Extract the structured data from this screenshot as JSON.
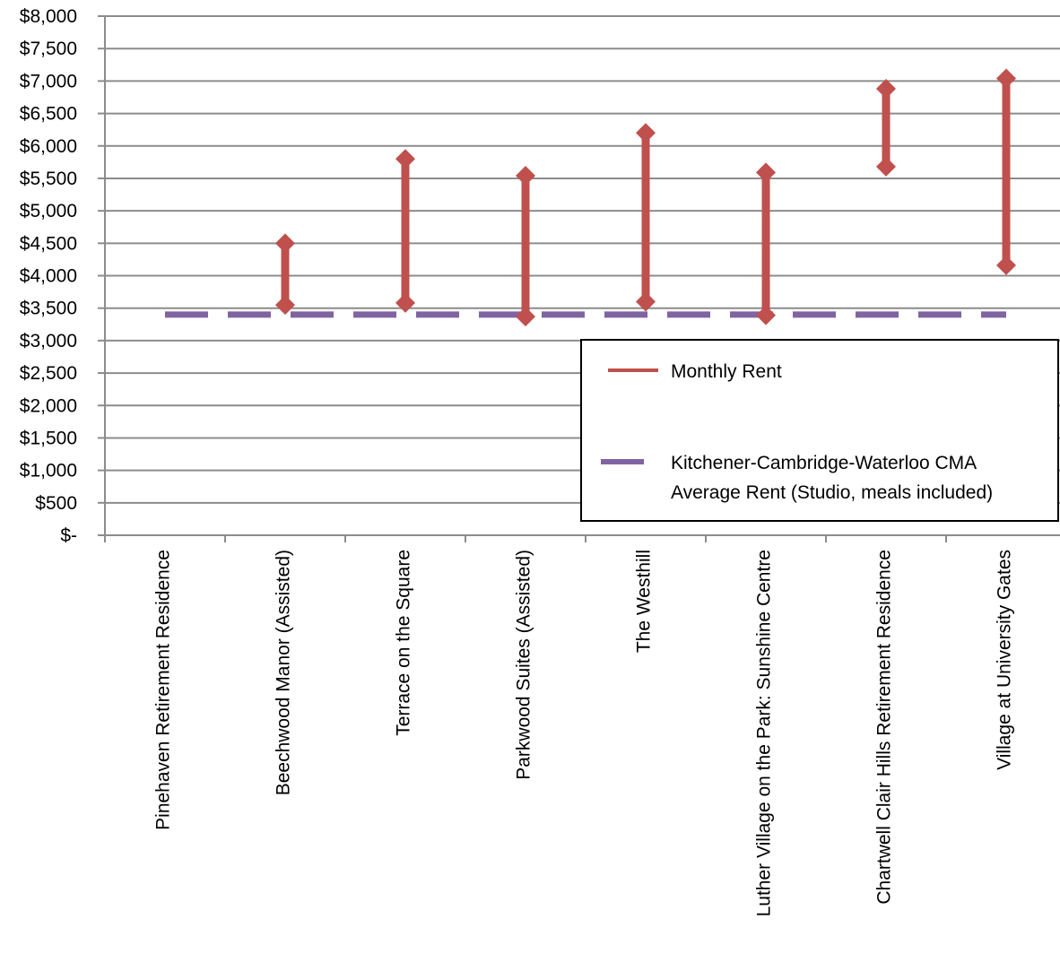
{
  "chart_data": {
    "type": "range",
    "categories": [
      "Pinehaven Retirement Residence",
      "Beechwood Manor (Assisted)",
      "Terrace on the Square",
      "Parkwood Suites (Assisted)",
      "The Westhill",
      "Luther Village on the Park: Sunshine Centre",
      "Chartwell Clair Hills Retirement Residence",
      "Village at University Gates"
    ],
    "series": [
      {
        "name": "Monthly Rent",
        "color": "#c0504d",
        "ranges": [
          null,
          [
            3550,
            4500
          ],
          [
            3580,
            5800
          ],
          [
            3370,
            5540
          ],
          [
            3600,
            6200
          ],
          [
            3390,
            5590
          ],
          [
            5680,
            6880
          ],
          [
            4160,
            7040
          ]
        ]
      },
      {
        "name": "Kitchener-Cambridge-Waterloo CMA Average Rent (Studio, meals included)",
        "legend_lines": [
          "Kitchener-Cambridge-Waterloo CMA",
          "Average Rent (Studio, meals included)"
        ],
        "color": "#8064a2",
        "value": 3400,
        "style": "dashed"
      }
    ],
    "yticks": [
      "$-",
      "$500",
      "$1,000",
      "$1,500",
      "$2,000",
      "$2,500",
      "$3,000",
      "$3,500",
      "$4,000",
      "$4,500",
      "$5,000",
      "$5,500",
      "$6,000",
      "$6,500",
      "$7,000",
      "$7,500",
      "$8,000"
    ],
    "ylim": [
      0,
      8000
    ],
    "ystep": 500,
    "grid": true,
    "legend_position": "right"
  }
}
